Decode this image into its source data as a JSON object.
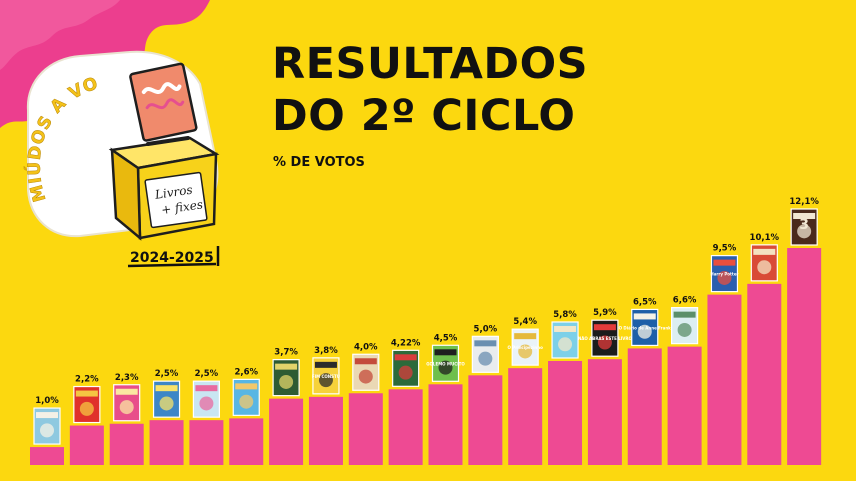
{
  "title": [
    "RESULTADOS",
    "DO 2º CICLO"
  ],
  "subtitle": "% DE VOTOS",
  "logo": {
    "arc_text": "MIÚDOS A VOTOS!",
    "box_text_1": "Livros",
    "box_text_2": "+ fixes",
    "year": "2024-2025"
  },
  "colors": {
    "background": "#FCD80F",
    "bar": "#EE4A93",
    "blob": "#EC3E8E",
    "text": "#111111"
  },
  "chart_data": {
    "type": "bar",
    "title": "RESULTADOS DO 2º CICLO",
    "ylabel": "% DE VOTOS",
    "xlabel": "",
    "values": [
      1.0,
      2.2,
      2.3,
      2.5,
      2.5,
      2.6,
      3.7,
      3.8,
      4.0,
      4.22,
      4.5,
      5.0,
      5.4,
      5.8,
      5.9,
      6.5,
      6.6,
      9.5,
      10.1,
      12.1
    ],
    "labels": [
      "1,0%",
      "2,2%",
      "2,3%",
      "2,5%",
      "2,5%",
      "2,6%",
      "3,7%",
      "3,8%",
      "4,0%",
      "4,22%",
      "4,5%",
      "5,0%",
      "5,4%",
      "5,8%",
      "5,9%",
      "6,5%",
      "6,6%",
      "9,5%",
      "10,1%",
      "12,1%"
    ],
    "covers": [
      {
        "text": "",
        "color": "#8EC9E0",
        "accent": "#F4F1E6"
      },
      {
        "text": "",
        "color": "#E0312B",
        "accent": "#F5C542"
      },
      {
        "text": "",
        "color": "#E84E8A",
        "accent": "#FBE7A1"
      },
      {
        "text": "",
        "color": "#3D86C6",
        "accent": "#F7E26A"
      },
      {
        "text": "",
        "color": "#C9E6F2",
        "accent": "#E86BA0"
      },
      {
        "text": "",
        "color": "#59B6E3",
        "accent": "#F3C86B"
      },
      {
        "text": "",
        "color": "#2E5B33",
        "accent": "#E2D36A"
      },
      {
        "text": "FIM CONSTU",
        "color": "#F6D23A",
        "accent": "#2B2B2B"
      },
      {
        "text": "",
        "color": "#EAD8B4",
        "accent": "#C44B3B"
      },
      {
        "text": "",
        "color": "#2C6A3A",
        "accent": "#D83C3C"
      },
      {
        "text": "GOLEMO MUCITO",
        "color": "#6FBF4C",
        "accent": "#1F1F1F"
      },
      {
        "text": "",
        "color": "#E9ECEE",
        "accent": "#6A8FB0"
      },
      {
        "text": "O Principezinho",
        "color": "#EAF3F8",
        "accent": "#E5B93B"
      },
      {
        "text": "",
        "color": "#7DD0E8",
        "accent": "#F2E7C9"
      },
      {
        "text": "NÃO ABRAS ESTE LIVRO",
        "color": "#1C1C1C",
        "accent": "#E23B3B"
      },
      {
        "text": "O Diário de Anne Frank",
        "color": "#1E5FA8",
        "accent": "#F4F1E6"
      },
      {
        "text": "",
        "color": "#DCEEF2",
        "accent": "#5C8F6A"
      },
      {
        "text": "Harry Potter",
        "color": "#2A5FAE",
        "accent": "#E94F3E"
      },
      {
        "text": "",
        "color": "#D94B36",
        "accent": "#F3E2C1"
      },
      {
        "text": "3",
        "color": "#4A2A1C",
        "accent": "#F0E6D2"
      }
    ],
    "ylim": [
      0,
      12.1
    ],
    "grid": false,
    "legend": "none"
  }
}
